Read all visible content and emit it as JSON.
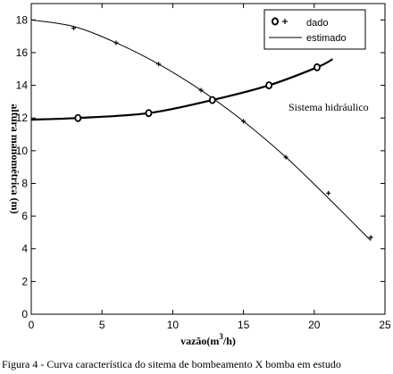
{
  "chart_data": {
    "type": "line",
    "xlabel_prefix": "vazão(m",
    "xlabel_sup": "3",
    "xlabel_suffix": "/h)",
    "ylabel": "altura manométrica (m)",
    "xlim": [
      0,
      25
    ],
    "ylim": [
      0,
      19
    ],
    "xticks": [
      0,
      5,
      10,
      15,
      20,
      25
    ],
    "yticks": [
      0,
      2,
      4,
      6,
      8,
      10,
      12,
      14,
      16,
      18
    ],
    "grid": false,
    "legend": {
      "placement": "top-right",
      "entries": [
        {
          "marker": "o",
          "marker2": "+",
          "label": "dado"
        },
        {
          "marker": "line",
          "label": "estimado"
        }
      ]
    },
    "annotation": "Sistema hidráulico",
    "series": [
      {
        "id": "pump-estimated",
        "style": "thin-line",
        "x": [
          0,
          3,
          6,
          9,
          12,
          15,
          18,
          21,
          24
        ],
        "y": [
          18.0,
          17.6,
          16.6,
          15.3,
          13.7,
          11.8,
          9.6,
          7.1,
          4.5
        ]
      },
      {
        "id": "pump-data",
        "marker": "+",
        "x": [
          3,
          6,
          9,
          12,
          15,
          18,
          21,
          24
        ],
        "y": [
          17.5,
          16.6,
          15.3,
          13.7,
          11.8,
          9.6,
          7.4,
          4.7
        ]
      },
      {
        "id": "system-estimated",
        "style": "thick-line",
        "x": [
          0,
          3.3,
          8.3,
          12.8,
          16.8,
          20.2,
          21.3
        ],
        "y": [
          11.9,
          12.0,
          12.3,
          13.1,
          14.0,
          15.1,
          15.6
        ]
      },
      {
        "id": "system-data",
        "marker": "o",
        "x": [
          3.3,
          8.3,
          12.8,
          16.8,
          20.2
        ],
        "y": [
          12.0,
          12.3,
          13.1,
          14.0,
          15.1
        ]
      }
    ]
  },
  "caption": "Figura 4 - Curva característica do sitema de bombeamento X  bomba em estudo"
}
